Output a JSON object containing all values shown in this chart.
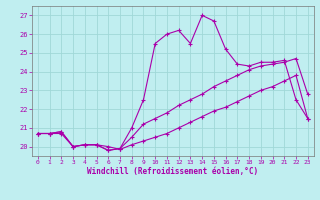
{
  "background_color": "#c0eef0",
  "grid_color": "#a0d8d8",
  "line_color": "#aa00aa",
  "xlabel": "Windchill (Refroidissement éolien,°C)",
  "xlim": [
    -0.5,
    23.5
  ],
  "ylim": [
    19.5,
    27.5
  ],
  "yticks": [
    20,
    21,
    22,
    23,
    24,
    25,
    26,
    27
  ],
  "xticks": [
    0,
    1,
    2,
    3,
    4,
    5,
    6,
    7,
    8,
    9,
    10,
    11,
    12,
    13,
    14,
    15,
    16,
    17,
    18,
    19,
    20,
    21,
    22,
    23
  ],
  "line1_x": [
    0,
    1,
    2,
    3,
    4,
    5,
    6,
    7,
    8,
    9,
    10,
    11,
    12,
    13,
    14,
    15,
    16,
    17,
    18,
    19,
    20,
    21,
    22,
    23
  ],
  "line1_y": [
    20.7,
    20.7,
    20.7,
    20.0,
    20.1,
    20.1,
    20.0,
    19.85,
    20.1,
    20.3,
    20.5,
    20.7,
    21.0,
    21.3,
    21.6,
    21.9,
    22.1,
    22.4,
    22.7,
    23.0,
    23.2,
    23.5,
    23.8,
    21.5
  ],
  "line2_x": [
    0,
    1,
    2,
    3,
    4,
    5,
    6,
    7,
    8,
    9,
    10,
    11,
    12,
    13,
    14,
    15,
    16,
    17,
    18,
    19,
    20,
    21,
    22,
    23
  ],
  "line2_y": [
    20.7,
    20.7,
    20.8,
    20.0,
    20.1,
    20.1,
    19.8,
    19.9,
    20.5,
    21.2,
    21.5,
    21.8,
    22.2,
    22.5,
    22.8,
    23.2,
    23.5,
    23.8,
    24.1,
    24.3,
    24.4,
    24.5,
    24.7,
    22.8
  ],
  "line3_x": [
    0,
    1,
    2,
    3,
    4,
    5,
    6,
    7,
    8,
    9,
    10,
    11,
    12,
    13,
    14,
    15,
    16,
    17,
    18,
    19,
    20,
    21,
    22,
    23
  ],
  "line3_y": [
    20.7,
    20.7,
    20.8,
    20.0,
    20.1,
    20.1,
    19.8,
    19.9,
    21.0,
    22.5,
    25.5,
    26.0,
    26.2,
    25.5,
    27.0,
    26.7,
    25.2,
    24.4,
    24.3,
    24.5,
    24.5,
    24.6,
    22.5,
    21.5
  ]
}
